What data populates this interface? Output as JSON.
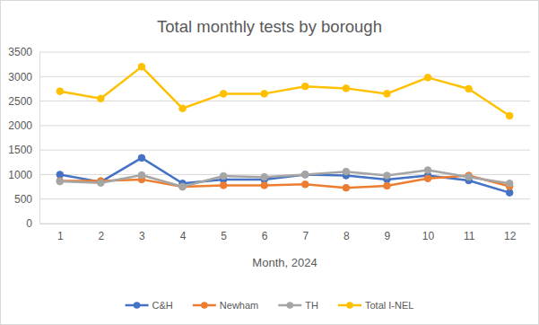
{
  "chart_data": {
    "type": "line",
    "title": "Total monthly tests by borough",
    "x_label": "Month, 2024",
    "categories": [
      "1",
      "2",
      "3",
      "4",
      "5",
      "6",
      "7",
      "8",
      "9",
      "10",
      "11",
      "12"
    ],
    "series": [
      {
        "name": "C&H",
        "color": "#4472c4",
        "marker": "circle",
        "values": [
          1000,
          850,
          1340,
          820,
          900,
          900,
          1000,
          980,
          900,
          980,
          880,
          630
        ]
      },
      {
        "name": "Newham",
        "color": "#ed7d31",
        "marker": "circle",
        "values": [
          870,
          870,
          900,
          750,
          780,
          780,
          800,
          730,
          770,
          920,
          980,
          760
        ]
      },
      {
        "name": "TH",
        "color": "#a5a5a5",
        "marker": "circle",
        "values": [
          860,
          830,
          990,
          750,
          970,
          950,
          1000,
          1060,
          980,
          1090,
          950,
          820
        ]
      },
      {
        "name": "Total I-NEL",
        "color": "#ffc000",
        "marker": "circle",
        "values": [
          2700,
          2550,
          3200,
          2350,
          2650,
          2650,
          2800,
          2760,
          2650,
          2980,
          2750,
          2200
        ]
      }
    ],
    "ylim": [
      0,
      3500
    ],
    "yticks": [
      0,
      500,
      1000,
      1500,
      2000,
      2500,
      3000,
      3500
    ],
    "grid": true,
    "legend": "bottom"
  }
}
